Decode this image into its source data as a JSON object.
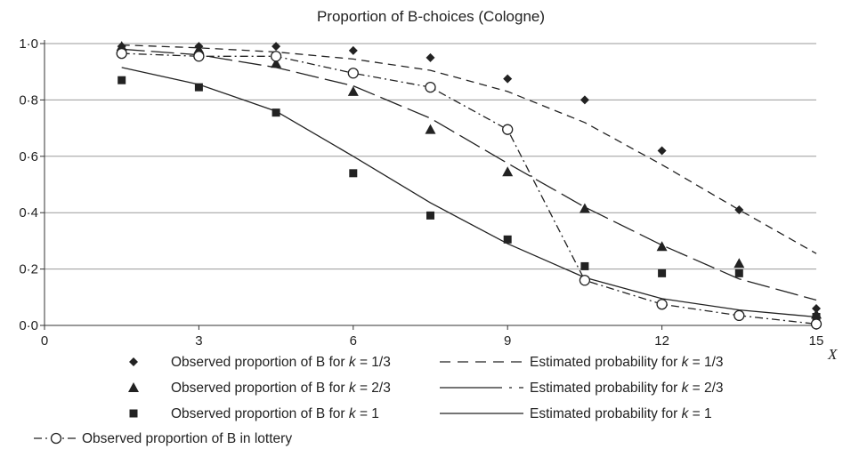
{
  "chart_data": {
    "type": "scatter",
    "title": "Proportion of B-choices (Cologne)",
    "xlabel": "X",
    "ylabel": "",
    "xlim": [
      0,
      15
    ],
    "ylim": [
      0,
      1
    ],
    "x_ticks": [
      "0",
      "3",
      "6",
      "9",
      "12",
      "15"
    ],
    "y_ticks": [
      "0·0",
      "0·2",
      "0·4",
      "0·6",
      "0·8",
      "1·0"
    ],
    "grid": "horizontal",
    "legend_position": "bottom",
    "series": [
      {
        "name": "Observed proportion of B for k = 1/3",
        "kind": "points",
        "marker": "diamond",
        "x": [
          1.5,
          3,
          4.5,
          6,
          7.5,
          9,
          10.5,
          12,
          13.5,
          15
        ],
        "y": [
          0.99,
          0.99,
          0.99,
          0.975,
          0.95,
          0.875,
          0.8,
          0.62,
          0.41,
          0.06
        ]
      },
      {
        "name": "Observed proportion of B for k = 2/3",
        "kind": "points",
        "marker": "triangle",
        "x": [
          1.5,
          3,
          4.5,
          6,
          7.5,
          9,
          10.5,
          12,
          13.5,
          15
        ],
        "y": [
          0.99,
          0.98,
          0.93,
          0.83,
          0.695,
          0.545,
          0.415,
          0.28,
          0.22,
          0.04
        ]
      },
      {
        "name": "Observed proportion of B for k = 1",
        "kind": "points",
        "marker": "square",
        "x": [
          1.5,
          3,
          4.5,
          6,
          7.5,
          9,
          10.5,
          12,
          13.5,
          15
        ],
        "y": [
          0.87,
          0.845,
          0.755,
          0.54,
          0.39,
          0.305,
          0.21,
          0.185,
          0.185,
          0.03
        ]
      },
      {
        "name": "Observed proportion of B in lottery",
        "kind": "line+points",
        "marker": "circle",
        "dash": "dashdot",
        "x": [
          1.5,
          3,
          4.5,
          6,
          7.5,
          9,
          10.5,
          12,
          13.5,
          15
        ],
        "y": [
          0.965,
          0.955,
          0.955,
          0.895,
          0.845,
          0.695,
          0.16,
          0.075,
          0.035,
          0.005
        ]
      },
      {
        "name": "Estimated probability for k = 1/3",
        "kind": "line",
        "dash": "short",
        "x": [
          1.5,
          3,
          4.5,
          6,
          7.5,
          9,
          10.5,
          12,
          13.5,
          15
        ],
        "y": [
          0.995,
          0.985,
          0.97,
          0.945,
          0.905,
          0.83,
          0.72,
          0.57,
          0.41,
          0.255
        ]
      },
      {
        "name": "Estimated probability for k = 2/3",
        "kind": "line",
        "dash": "long",
        "x": [
          1.5,
          3,
          4.5,
          6,
          7.5,
          9,
          10.5,
          12,
          13.5,
          15
        ],
        "y": [
          0.98,
          0.96,
          0.915,
          0.85,
          0.735,
          0.575,
          0.42,
          0.285,
          0.165,
          0.09
        ]
      },
      {
        "name": "Estimated probability for k = 1",
        "kind": "line",
        "dash": "solid",
        "x": [
          1.5,
          3,
          4.5,
          6,
          7.5,
          9,
          10.5,
          12,
          13.5,
          15
        ],
        "y": [
          0.915,
          0.855,
          0.76,
          0.6,
          0.435,
          0.29,
          0.17,
          0.095,
          0.055,
          0.03
        ]
      }
    ],
    "legend": {
      "left": [
        {
          "marker": "diamond",
          "text": "Observed proportion of B for ",
          "k": "k",
          "value": " = 1/3"
        },
        {
          "marker": "triangle",
          "text": "Observed proportion of B for ",
          "k": "k",
          "value": " = 2/3"
        },
        {
          "marker": "square",
          "text": "Observed proportion of B for ",
          "k": "k",
          "value": " = 1"
        },
        {
          "marker": "lottery",
          "text": "Observed proportion of B in lottery",
          "k": "",
          "value": ""
        }
      ],
      "right": [
        {
          "line": "short",
          "text": "Estimated probability for ",
          "k": "k",
          "value": " = 1/3"
        },
        {
          "line": "long",
          "text": "Estimated probability for ",
          "k": "k",
          "value": " = 2/3"
        },
        {
          "line": "solid",
          "text": "Estimated probability for ",
          "k": "k",
          "value": " = 1"
        }
      ]
    },
    "colors": {
      "ink": "#222222",
      "grid": "#9a9a9a"
    }
  }
}
